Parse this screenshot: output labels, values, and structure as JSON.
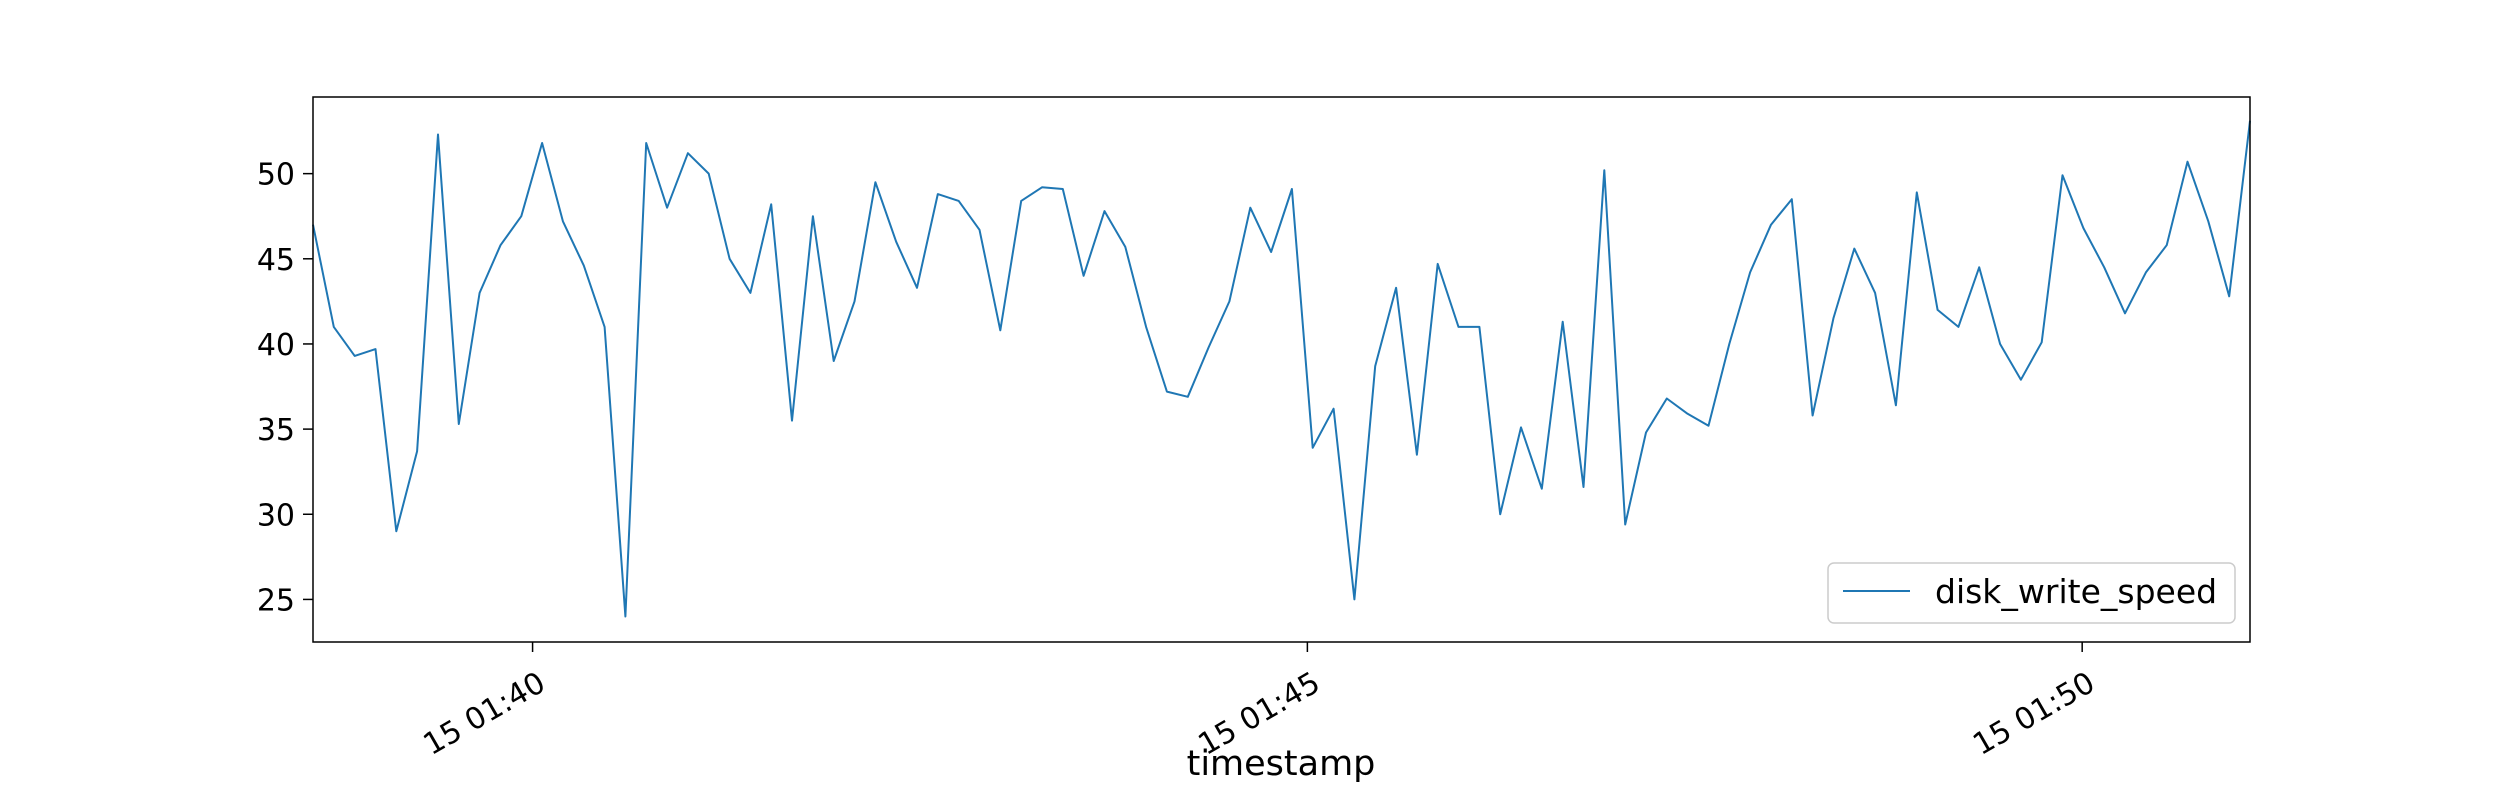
{
  "chart_data": {
    "type": "line",
    "title": "",
    "xlabel": "timestamp",
    "ylabel": "",
    "x_ticks": [
      "15 01:40",
      "15 01:45",
      "15 01:50"
    ],
    "x_tick_minutes": [
      40,
      45,
      50
    ],
    "xlim_minutes": [
      38.583,
      51.083
    ],
    "y_ticks": [
      25,
      30,
      35,
      40,
      45,
      50
    ],
    "ylim": [
      22.5,
      54.5
    ],
    "grid": false,
    "legend_placement": "lower-right",
    "line_color": "#1f77b4",
    "series": [
      {
        "name": "disk_write_speed",
        "values": [
          47.0,
          41.0,
          39.3,
          39.7,
          29.0,
          33.7,
          52.3,
          35.3,
          43.0,
          45.8,
          47.5,
          51.8,
          47.2,
          44.6,
          41.0,
          24.0,
          51.8,
          48.0,
          51.2,
          50.0,
          45.0,
          43.0,
          48.2,
          35.5,
          47.5,
          39.0,
          42.5,
          49.5,
          46.0,
          43.3,
          48.8,
          48.4,
          46.7,
          40.8,
          48.4,
          49.2,
          49.1,
          44.0,
          47.8,
          45.7,
          41.0,
          37.2,
          36.9,
          39.8,
          42.5,
          48.0,
          45.4,
          49.1,
          33.9,
          36.2,
          25.0,
          38.7,
          43.3,
          33.5,
          44.7,
          41.0,
          41.0,
          30.0,
          35.1,
          31.5,
          41.3,
          31.6,
          50.2,
          29.4,
          34.8,
          36.8,
          35.9,
          35.2,
          40.0,
          44.2,
          47.0,
          48.5,
          35.8,
          41.5,
          45.6,
          43.0,
          36.4,
          48.9,
          42.0,
          41.0,
          44.5,
          40.0,
          37.9,
          40.1,
          49.9,
          46.8,
          44.5,
          41.8,
          44.2,
          45.8,
          50.7,
          47.2,
          42.8,
          53.1
        ]
      }
    ]
  }
}
